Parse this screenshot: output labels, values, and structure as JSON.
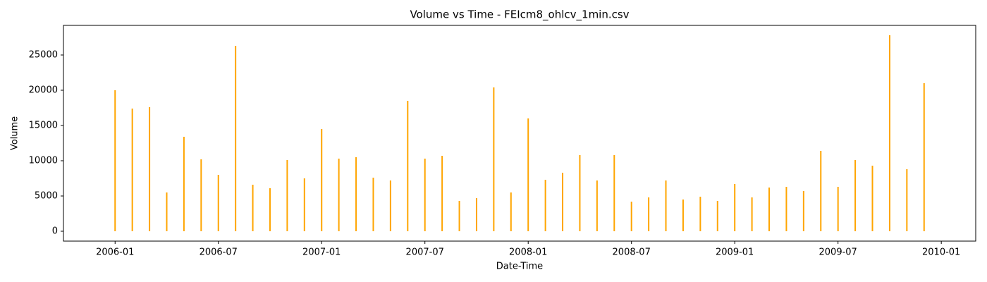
{
  "chart_data": {
    "type": "vlines",
    "title": "Volume vs Time - FEIcm8_ohlcv_1min.csv",
    "xlabel": "Date-Time",
    "ylabel": "Volume",
    "color": "#ffa500",
    "x": [
      "2006-01",
      "2006-02",
      "2006-03",
      "2006-04",
      "2006-05",
      "2006-06",
      "2006-07",
      "2006-08",
      "2006-09",
      "2006-10",
      "2006-11",
      "2006-12",
      "2007-01",
      "2007-02",
      "2007-03",
      "2007-04",
      "2007-05",
      "2007-06",
      "2007-07",
      "2007-08",
      "2007-09",
      "2007-10",
      "2007-11",
      "2007-12",
      "2008-01",
      "2008-02",
      "2008-03",
      "2008-04",
      "2008-05",
      "2008-06",
      "2008-07",
      "2008-08",
      "2008-09",
      "2008-10",
      "2008-11",
      "2008-12",
      "2009-01",
      "2009-02",
      "2009-03",
      "2009-04",
      "2009-05",
      "2009-06",
      "2009-07",
      "2009-08",
      "2009-09",
      "2009-10",
      "2009-11",
      "2009-12"
    ],
    "values": [
      20000,
      17400,
      17600,
      5500,
      13400,
      10200,
      8000,
      26300,
      6600,
      6100,
      10100,
      7500,
      14500,
      10300,
      10500,
      7600,
      7200,
      18500,
      10300,
      10700,
      4300,
      4700,
      20400,
      5500,
      16000,
      7300,
      8300,
      10800,
      7200,
      10800,
      4200,
      4800,
      7200,
      4500,
      4900,
      4300,
      6700,
      4800,
      6200,
      6300,
      5700,
      11400,
      6300,
      10100,
      9300,
      27800,
      8800,
      21000
    ],
    "xlim": [
      "2005-10",
      "2010-03"
    ],
    "xticks": [
      "2006-01",
      "2006-07",
      "2007-01",
      "2007-07",
      "2008-01",
      "2008-07",
      "2009-01",
      "2009-07",
      "2010-01"
    ],
    "ylim": [
      -1400,
      29200
    ],
    "yticks": [
      0,
      5000,
      10000,
      15000,
      20000,
      25000
    ]
  }
}
